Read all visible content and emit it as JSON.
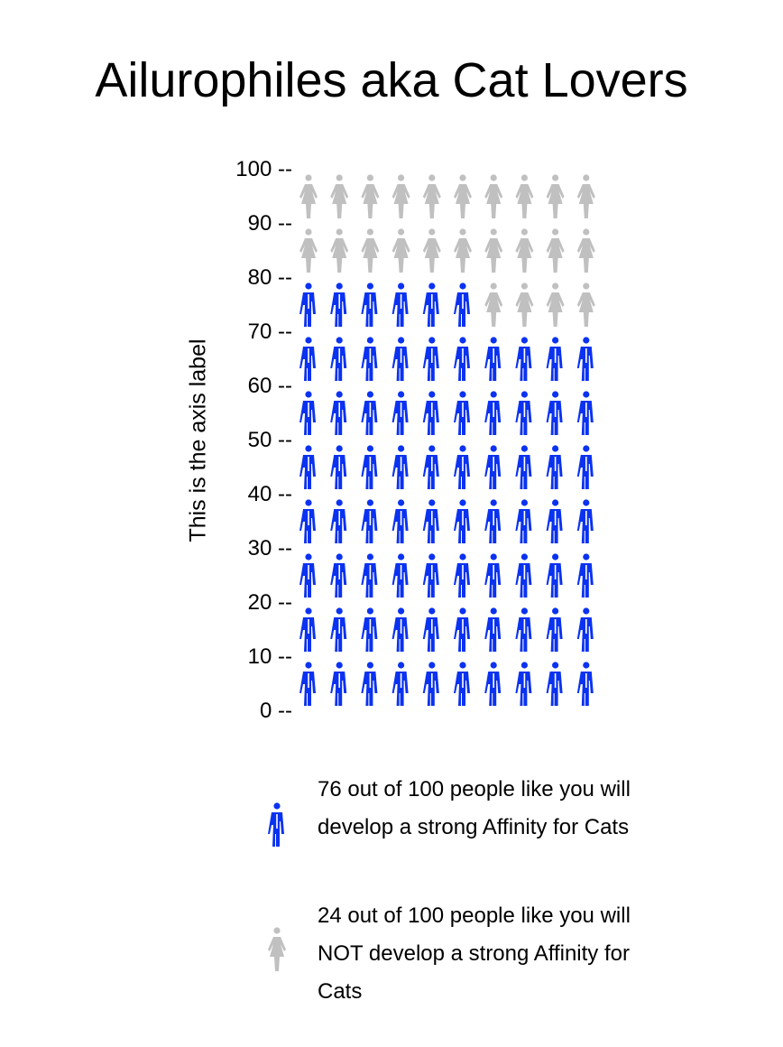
{
  "chart_data": {
    "type": "pictograph",
    "title": "Ailurophiles aka Cat Lovers",
    "ylabel": "This is the axis label",
    "ylim": [
      0,
      100
    ],
    "y_ticks": [
      0,
      10,
      20,
      30,
      40,
      50,
      60,
      70,
      80,
      90,
      100
    ],
    "tick_suffix": " --",
    "total": 100,
    "icons_per_row": 10,
    "series": [
      {
        "name": "76 out of 100 people like you will develop a strong Affinity for Cats",
        "value": 76,
        "color": "#0a32f0",
        "icon": "male-person-icon"
      },
      {
        "name": "24 out of 100 people like you will NOT develop a strong Affinity for Cats",
        "value": 24,
        "color": "#c0c0c0",
        "icon": "female-person-icon"
      }
    ]
  }
}
